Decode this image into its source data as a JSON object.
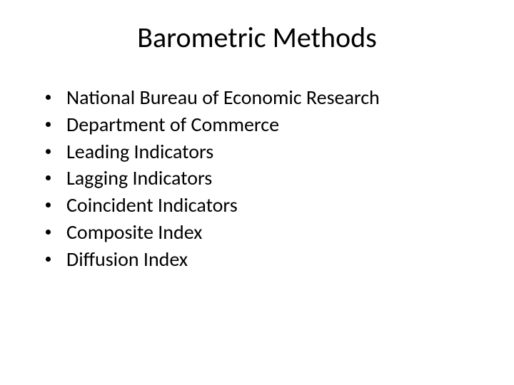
{
  "slide": {
    "title": "Barometric Methods",
    "title_fontsize": 40,
    "body_fontsize": 28,
    "background_color": "#ffffff",
    "text_color": "#000000",
    "bullet_color": "#000000",
    "bullets": [
      {
        "text": "National Bureau of Economic Research"
      },
      {
        "text": "Department of Commerce"
      },
      {
        "text": "Leading Indicators"
      },
      {
        "text": "Lagging Indicators"
      },
      {
        "text": "Coincident Indicators"
      },
      {
        "text": "Composite Index"
      },
      {
        "text": "Diffusion Index"
      }
    ]
  }
}
